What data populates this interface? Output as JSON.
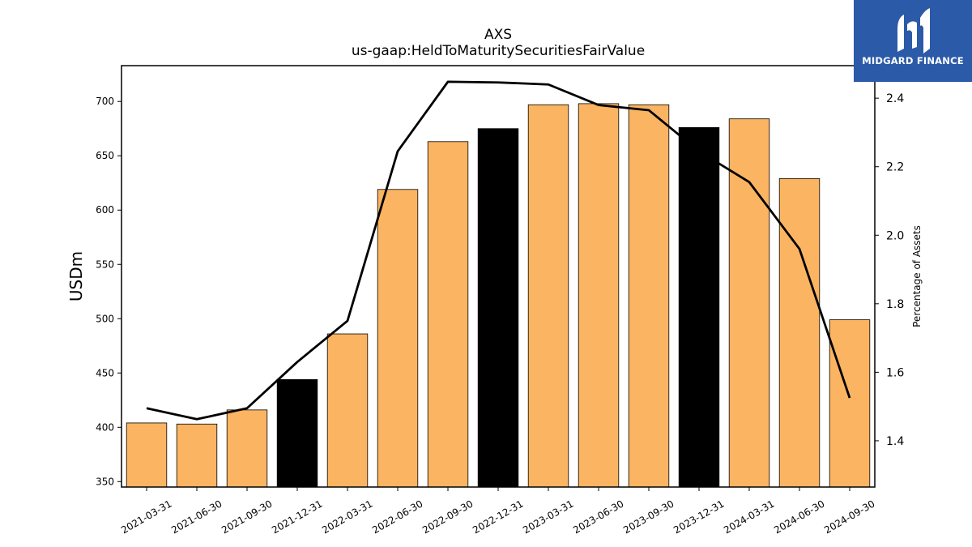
{
  "chart_data": {
    "type": "bar",
    "title": "AXS",
    "subtitle": "us-gaap:HeldToMaturitySecuritiesFairValue",
    "ylabel": "USDm",
    "y2label": "Percentage of Assets",
    "ylim": [
      345,
      733
    ],
    "y2lim": [
      1.265,
      2.495
    ],
    "yticks": [
      350,
      400,
      450,
      500,
      550,
      600,
      650,
      700
    ],
    "y2ticks": [
      1.4,
      1.6,
      1.8,
      2.0,
      2.2,
      2.4
    ],
    "categories": [
      "2021-03-31",
      "2021-06-30",
      "2021-09-30",
      "2021-12-31",
      "2022-03-31",
      "2022-06-30",
      "2022-09-30",
      "2022-12-31",
      "2023-03-31",
      "2023-06-30",
      "2023-09-30",
      "2023-12-31",
      "2024-03-31",
      "2024-06-30",
      "2024-09-30"
    ],
    "series": [
      {
        "type": "bar",
        "values": [
          404,
          403,
          416,
          444,
          486,
          619,
          663,
          675,
          697,
          698,
          697,
          676,
          684,
          629,
          499
        ],
        "highlight": [
          false,
          false,
          false,
          true,
          false,
          false,
          false,
          true,
          false,
          false,
          false,
          true,
          false,
          false,
          false
        ]
      },
      {
        "type": "line",
        "axis": "right",
        "values": [
          1.495,
          1.463,
          1.495,
          1.63,
          1.75,
          2.245,
          2.448,
          2.446,
          2.44,
          2.38,
          2.365,
          2.245,
          2.155,
          1.96,
          1.525
        ]
      }
    ],
    "colors": {
      "bar": "#fbb462",
      "highlight": "#000000",
      "line": "#000000"
    },
    "grid": false
  },
  "logo": {
    "text": "MIDGARD FINANCE",
    "color": "#2b5aa8"
  }
}
